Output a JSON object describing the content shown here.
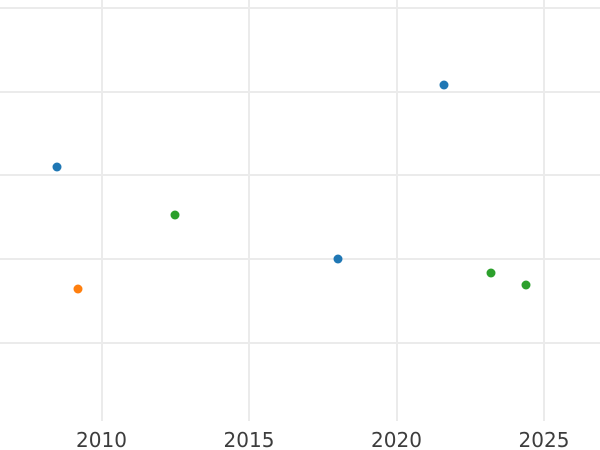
{
  "chart_data": {
    "type": "scatter",
    "title": "",
    "subtitle": "",
    "xlabel": "",
    "ylabel": "",
    "legend": "none",
    "grid": true,
    "x_tick_labels": [
      "2010",
      "2015",
      "2020",
      "2025"
    ],
    "x_tick_values": [
      2010,
      2015,
      2020,
      2025
    ],
    "y_tick_labels_visible": false,
    "y_gridline_values": [
      0,
      1,
      2,
      3,
      4
    ],
    "y_unit_note": "y-axis labels not visible in image; values given in gridline units (bottom visible gridline = 0, one unit per gridline)",
    "xlim": [
      2006.56,
      2026.9
    ],
    "ylim": [
      -0.94,
      4.1
    ],
    "series": [
      {
        "name": "series-blue",
        "color": "#1f77b4",
        "points": [
          {
            "x": 2008.5,
            "y": 2.1
          },
          {
            "x": 2018.0,
            "y": 1.0
          },
          {
            "x": 2021.6,
            "y": 3.08
          }
        ]
      },
      {
        "name": "series-orange",
        "color": "#ff7f0e",
        "points": [
          {
            "x": 2009.2,
            "y": 0.64
          }
        ]
      },
      {
        "name": "series-green",
        "color": "#2ca02c",
        "points": [
          {
            "x": 2012.5,
            "y": 1.53
          },
          {
            "x": 2023.2,
            "y": 0.83
          },
          {
            "x": 2024.4,
            "y": 0.69
          }
        ]
      }
    ],
    "colors": {
      "grid": "#ebebeb",
      "tick_label": "#3d3d3d",
      "background": "#ffffff"
    }
  }
}
